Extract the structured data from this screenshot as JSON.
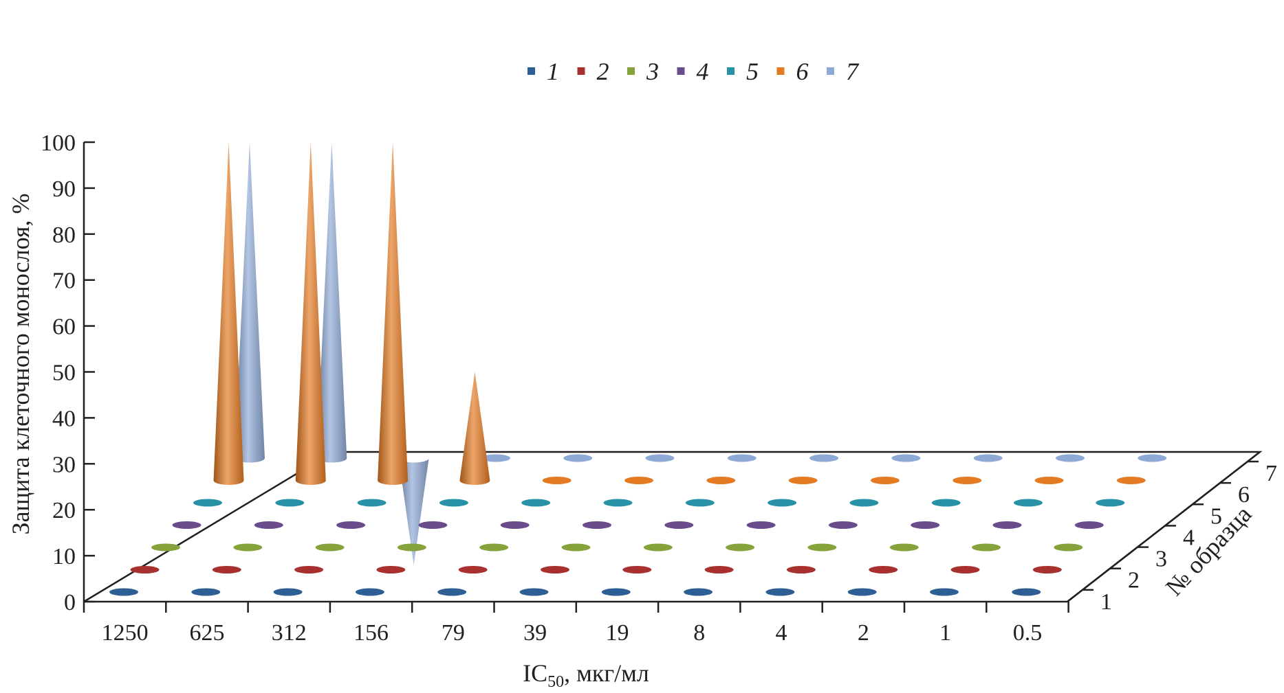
{
  "chart_data": {
    "type": "3d-cone",
    "ylabel": "Защита клеточного монослоя, %",
    "xlabel_main": "IC",
    "xlabel_sub": "50",
    "xlabel_tail": ", мкг/мл",
    "zlabel": "№ образца",
    "ylim": [
      0,
      100
    ],
    "yticks": [
      "0",
      "10",
      "20",
      "30",
      "40",
      "50",
      "60",
      "70",
      "80",
      "90",
      "100"
    ],
    "categories": [
      "1250",
      "625",
      "312",
      "156",
      "79",
      "39",
      "19",
      "8",
      "4",
      "2",
      "1",
      "0.5"
    ],
    "samples": [
      "1",
      "2",
      "3",
      "4",
      "5",
      "6",
      "7"
    ],
    "legend": [
      "1",
      "2",
      "3",
      "4",
      "5",
      "6",
      "7"
    ],
    "colors": [
      "#2d5e94",
      "#a8312f",
      "#86a23b",
      "#6a4b8c",
      "#2891a6",
      "#e47a22",
      "#8fa9d6"
    ],
    "series": [
      {
        "name": "1",
        "values": [
          0,
          0,
          0,
          0,
          0,
          0,
          0,
          0,
          0,
          0,
          0,
          0
        ]
      },
      {
        "name": "2",
        "values": [
          0,
          0,
          0,
          0,
          0,
          0,
          0,
          0,
          0,
          0,
          0,
          0
        ]
      },
      {
        "name": "3",
        "values": [
          0,
          0,
          0,
          0,
          0,
          0,
          0,
          0,
          0,
          0,
          0,
          0
        ]
      },
      {
        "name": "4",
        "values": [
          0,
          0,
          0,
          0,
          0,
          0,
          0,
          0,
          0,
          0,
          0,
          0
        ]
      },
      {
        "name": "5",
        "values": [
          0,
          0,
          0,
          0,
          0,
          0,
          0,
          0,
          0,
          0,
          0,
          0
        ]
      },
      {
        "name": "6",
        "values": [
          100,
          100,
          100,
          50,
          0,
          0,
          0,
          0,
          0,
          0,
          0,
          0
        ]
      },
      {
        "name": "7",
        "values": [
          100,
          100,
          8,
          0,
          0,
          0,
          0,
          0,
          0,
          0,
          0,
          0
        ]
      }
    ]
  }
}
